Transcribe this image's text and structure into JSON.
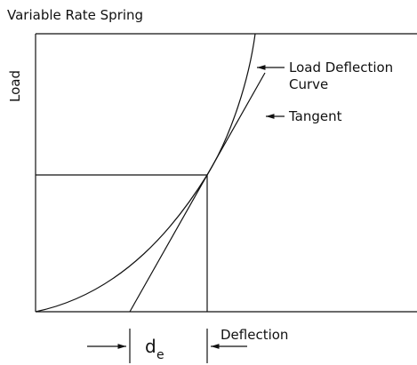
{
  "title": "Variable Rate Spring",
  "axes": {
    "y_label": "Load",
    "x_label": "Deflection"
  },
  "annotations": {
    "curve": [
      "Load Deflection",
      "Curve"
    ],
    "tangent": "Tangent"
  },
  "dimension": {
    "main": "d",
    "sub": "e"
  }
}
